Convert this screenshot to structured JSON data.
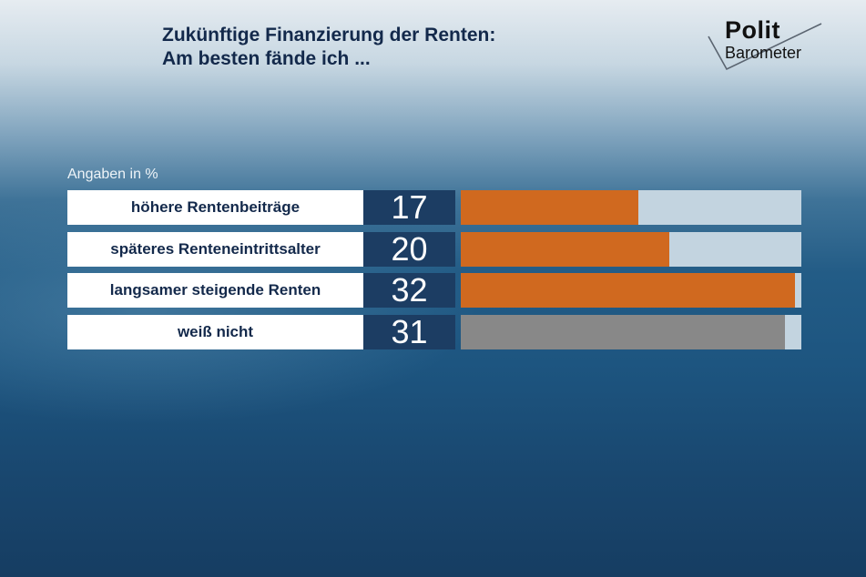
{
  "header": {
    "title_line1": "Zukünftige Finanzierung der Renten:",
    "title_line2": "Am besten fände ich ..."
  },
  "logo": {
    "word1": "Polit",
    "word2": "Barometer"
  },
  "chart_data": {
    "type": "bar",
    "orientation": "horizontal",
    "unit_label": "Angaben in %",
    "categories": [
      "höhere Rentenbeiträge",
      "späteres Renteneintrittsalter",
      "langsamer steigende Renten",
      "weiß nicht"
    ],
    "values": [
      17,
      20,
      32,
      31
    ],
    "value_labels": [
      "17",
      "20",
      "32",
      "31"
    ],
    "xlim": [
      0,
      32
    ],
    "colors": [
      "#d0691f",
      "#d0691f",
      "#d0691f",
      "#888888"
    ],
    "track_color": "#c3d4e0",
    "grid": false
  }
}
